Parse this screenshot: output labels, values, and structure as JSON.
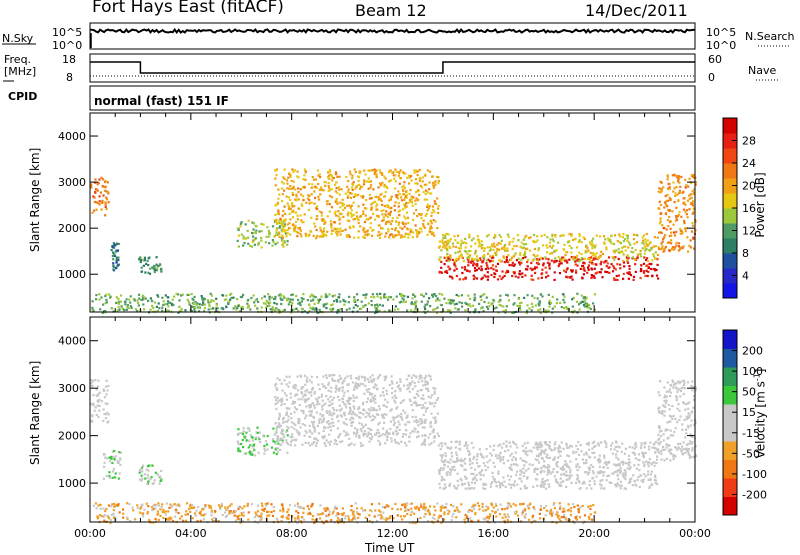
{
  "header": {
    "station": "Fort Hays East (fitACF)",
    "beam": "Beam 12",
    "date": "14/Dec/2011"
  },
  "summary": {
    "left_top": "N.Sky",
    "left_mid_1": "Freq.",
    "left_mid_2": "[MHz]",
    "left_bot": "CPID",
    "right_top": "N.Search",
    "right_mid": "Nave",
    "nsky_ticks": [
      "10^5",
      "10^0"
    ],
    "freq_ticks": [
      "18",
      "8"
    ],
    "nave_ticks": [
      "60",
      "0"
    ],
    "cpid_text": "normal (fast) 151 IF"
  },
  "axes": {
    "ylabel": "Slant Range [km]",
    "yticks": [
      1000,
      2000,
      3000,
      4000
    ],
    "ylim": [
      180,
      4500
    ],
    "xlabel": "Time UT",
    "xticks": [
      "00:00",
      "04:00",
      "08:00",
      "12:00",
      "16:00",
      "20:00",
      "00:00"
    ],
    "xlim_hours": [
      0,
      24
    ]
  },
  "colors": {
    "power": [
      "#1414e6",
      "#2828c8",
      "#1e50a0",
      "#2e7d66",
      "#4f9b64",
      "#9cc83c",
      "#e6c814",
      "#f0a014",
      "#f07814",
      "#f04614",
      "#e61e14",
      "#d20000"
    ],
    "velocity": [
      "#d20000",
      "#f03c14",
      "#f07814",
      "#f0a028",
      "#c8c8c8",
      "#c8c8c8",
      "#3cc83c",
      "#2e9b5a",
      "#1e5aa0",
      "#1414c8"
    ]
  },
  "chart_data": [
    {
      "type": "heatmap",
      "title": "",
      "xlabel": "Time UT",
      "ylabel": "Slant Range [km]",
      "ylim": [
        180,
        4500
      ],
      "colorbar": {
        "label": "Power [dB]",
        "ticks": [
          "4",
          "8",
          "12",
          "16",
          "20",
          "24",
          "28"
        ],
        "range": [
          0,
          30
        ]
      },
      "regions": [
        {
          "t": [
            0.0,
            0.7
          ],
          "r": [
            2300,
            3200
          ],
          "value": 21
        },
        {
          "t": [
            0.8,
            1.1
          ],
          "r": [
            1100,
            1700
          ],
          "value": 8
        },
        {
          "t": [
            1.9,
            2.8
          ],
          "r": [
            1000,
            1400
          ],
          "value": 10
        },
        {
          "t": [
            5.8,
            7.8
          ],
          "r": [
            1600,
            2200
          ],
          "value": 13
        },
        {
          "t": [
            7.3,
            13.8
          ],
          "r": [
            1800,
            3300
          ],
          "value": 18
        },
        {
          "t": [
            13.8,
            22.5
          ],
          "r": [
            900,
            1400
          ],
          "value": 27
        },
        {
          "t": [
            13.8,
            22.5
          ],
          "r": [
            1300,
            1900
          ],
          "value": 16
        },
        {
          "t": [
            22.5,
            24.0
          ],
          "r": [
            1500,
            3200
          ],
          "value": 20
        },
        {
          "t": [
            0.0,
            20.0
          ],
          "r": [
            180,
            600
          ],
          "value": 12
        }
      ]
    },
    {
      "type": "heatmap",
      "title": "",
      "xlabel": "Time UT",
      "ylabel": "Slant Range [km]",
      "ylim": [
        180,
        4500
      ],
      "colorbar": {
        "label": "Velocity [m s^-1]",
        "ticks": [
          "200",
          "100",
          "50",
          "15",
          "-15",
          "-50",
          "-100",
          "-200"
        ],
        "range": [
          -250,
          250
        ]
      },
      "regions": [
        {
          "t": [
            0.0,
            0.7
          ],
          "r": [
            2300,
            3200
          ],
          "value": 0
        },
        {
          "t": [
            0.5,
            1.2
          ],
          "r": [
            1100,
            1700
          ],
          "value": 40
        },
        {
          "t": [
            1.9,
            2.8
          ],
          "r": [
            1000,
            1400
          ],
          "value": 40
        },
        {
          "t": [
            5.8,
            7.8
          ],
          "r": [
            1600,
            2200
          ],
          "value": 45
        },
        {
          "t": [
            7.3,
            13.8
          ],
          "r": [
            1800,
            3300
          ],
          "value": 0
        },
        {
          "t": [
            13.8,
            22.5
          ],
          "r": [
            900,
            1900
          ],
          "value": 0
        },
        {
          "t": [
            22.5,
            24.0
          ],
          "r": [
            1500,
            3200
          ],
          "value": 0
        },
        {
          "t": [
            0.0,
            20.0
          ],
          "r": [
            180,
            600
          ],
          "value": -70
        }
      ]
    }
  ]
}
